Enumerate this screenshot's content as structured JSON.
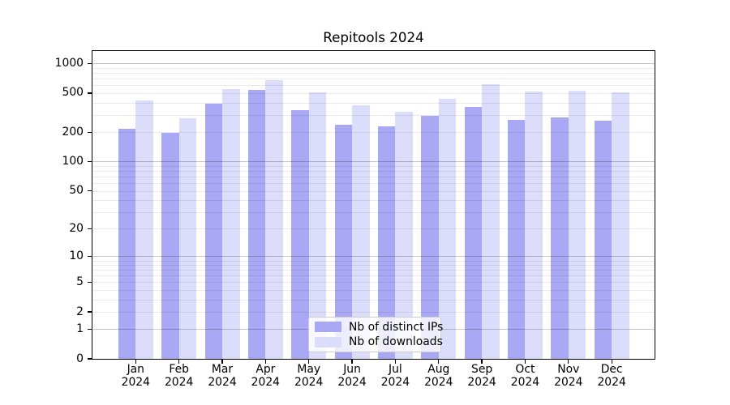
{
  "title": "Repitools 2024",
  "chart_data": {
    "type": "bar",
    "title": "Repitools 2024",
    "x": [
      "Jan",
      "Feb",
      "Mar",
      "Apr",
      "May",
      "Jun",
      "Jul",
      "Aug",
      "Sep",
      "Oct",
      "Nov",
      "Dec"
    ],
    "year_label": "2024",
    "series": [
      {
        "name": "Nb of distinct IPs",
        "color": "#a8a8f4",
        "values": [
          217,
          197,
          388,
          535,
          333,
          240,
          230,
          291,
          362,
          265,
          280,
          264
        ]
      },
      {
        "name": "Nb of downloads",
        "color": "#dcdcfb",
        "values": [
          421,
          276,
          548,
          672,
          514,
          376,
          320,
          436,
          621,
          515,
          531,
          512
        ]
      }
    ],
    "y_scale": "log(1+y)",
    "y_ticks": [
      1000,
      500,
      200,
      100,
      50,
      20,
      10,
      5,
      2,
      1,
      0
    ],
    "ylim": [
      0,
      1340
    ],
    "grid": "horizontal log major+minor",
    "legend_position": "lower center"
  }
}
